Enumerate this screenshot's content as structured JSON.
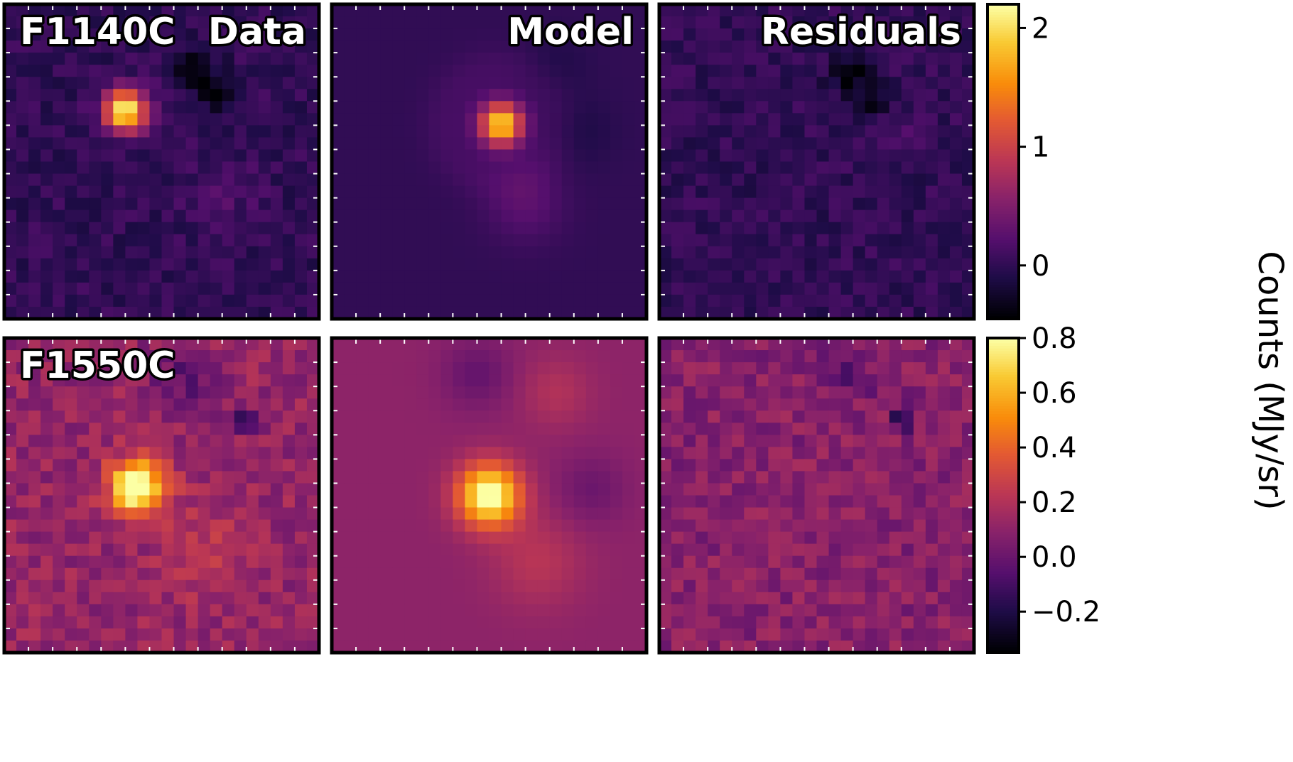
{
  "figure": {
    "colorbar_label": "Counts (MJy/sr)",
    "colormap": "inferno"
  },
  "chart_data": [
    {
      "type": "heatmap",
      "row": 1,
      "filter": "F1140C",
      "colorbar": {
        "vmin": -0.45,
        "vmax": 2.2,
        "ticks": [
          0,
          1,
          2
        ],
        "tick_labels": [
          "0",
          "1",
          "2"
        ]
      },
      "panels": [
        {
          "title": "Data",
          "filter_label": "F1140C",
          "grid": [
            26,
            26
          ],
          "background": 0.0,
          "noise": 0.14,
          "features": [
            {
              "kind": "source",
              "x": 9.5,
              "y": 8.3,
              "peak": 2.1,
              "sigma": 1.25
            },
            {
              "kind": "hole",
              "x": 15.5,
              "y": 5.2,
              "peak": -0.45,
              "sigma": 1.3
            },
            {
              "kind": "hole",
              "x": 17.0,
              "y": 7.4,
              "peak": -0.35,
              "sigma": 0.8
            },
            {
              "kind": "arc",
              "x": 17.5,
              "y": 15.0,
              "peak": 0.18,
              "sigma": 2.0
            }
          ]
        },
        {
          "title": "Model",
          "grid": [
            26,
            26
          ],
          "background": 0.0,
          "noise": 0.0,
          "features": [
            {
              "kind": "source",
              "x": 13.5,
              "y": 9.4,
              "peak": 2.0,
              "sigma": 1.25
            },
            {
              "kind": "ring",
              "x": 13.5,
              "y": 9.4,
              "peak": 0.12,
              "sigma": 1.4
            },
            {
              "kind": "arc",
              "x": 15.5,
              "y": 16.0,
              "peak": 0.25,
              "sigma": 2.2
            },
            {
              "kind": "hole",
              "x": 20.0,
              "y": 10.0,
              "peak": -0.12,
              "sigma": 2.0
            },
            {
              "kind": "hole",
              "x": 18.0,
              "y": 4.5,
              "peak": -0.1,
              "sigma": 2.0
            }
          ]
        },
        {
          "title": "Residuals",
          "grid": [
            26,
            26
          ],
          "background": 0.0,
          "noise": 0.14,
          "features": [
            {
              "kind": "hole",
              "x": 15.5,
              "y": 5.2,
              "peak": -0.45,
              "sigma": 1.3
            },
            {
              "kind": "hole",
              "x": 17.0,
              "y": 8.0,
              "peak": -0.35,
              "sigma": 0.8
            },
            {
              "kind": "arc",
              "x": 19.0,
              "y": 10.5,
              "peak": 0.2,
              "sigma": 1.2
            }
          ]
        }
      ]
    },
    {
      "type": "heatmap",
      "row": 2,
      "filter": "F1550C",
      "colorbar": {
        "vmin": -0.35,
        "vmax": 0.8,
        "ticks": [
          0.8,
          0.6,
          0.4,
          0.2,
          0.0,
          -0.2
        ],
        "tick_labels": [
          "0.8",
          "0.6",
          "0.4",
          "0.2",
          "0.0",
          "−0.2"
        ]
      },
      "panels": [
        {
          "title": "",
          "filter_label": "F1550C",
          "grid": [
            26,
            26
          ],
          "background": 0.12,
          "noise": 0.09,
          "features": [
            {
              "kind": "source",
              "x": 10.5,
              "y": 11.8,
              "peak": 0.8,
              "sigma": 1.6
            },
            {
              "kind": "hole",
              "x": 19.5,
              "y": 6.3,
              "peak": -0.35,
              "sigma": 0.6
            },
            {
              "kind": "hole",
              "x": 14.0,
              "y": 3.0,
              "peak": -0.15,
              "sigma": 2.0
            },
            {
              "kind": "arc",
              "x": 16.5,
              "y": 17.0,
              "peak": 0.12,
              "sigma": 2.5
            }
          ]
        },
        {
          "title": "",
          "grid": [
            26,
            26
          ],
          "background": 0.1,
          "noise": 0.0,
          "features": [
            {
              "kind": "source",
              "x": 12.5,
              "y": 12.5,
              "peak": 0.75,
              "sigma": 1.8
            },
            {
              "kind": "hole",
              "x": 11.5,
              "y": 2.5,
              "peak": -0.12,
              "sigma": 2.0
            },
            {
              "kind": "arc",
              "x": 18.0,
              "y": 4.0,
              "peak": 0.1,
              "sigma": 2.0
            },
            {
              "kind": "arc",
              "x": 16.5,
              "y": 18.0,
              "peak": 0.12,
              "sigma": 2.6
            },
            {
              "kind": "hole",
              "x": 21.0,
              "y": 12.0,
              "peak": -0.1,
              "sigma": 2.0
            }
          ]
        },
        {
          "title": "",
          "grid": [
            26,
            26
          ],
          "background": 0.08,
          "noise": 0.09,
          "features": [
            {
              "kind": "hole",
              "x": 19.5,
              "y": 6.3,
              "peak": -0.35,
              "sigma": 0.6
            },
            {
              "kind": "hole",
              "x": 15.0,
              "y": 2.5,
              "peak": -0.12,
              "sigma": 1.5
            }
          ]
        }
      ]
    }
  ]
}
